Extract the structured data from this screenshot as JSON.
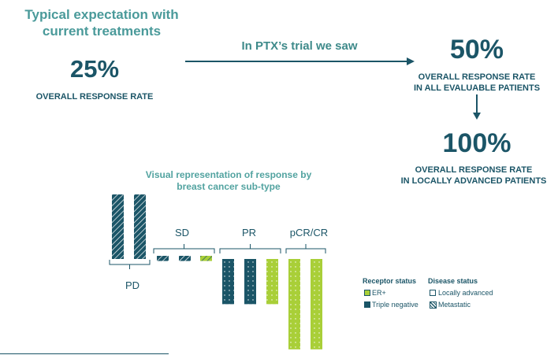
{
  "header": {
    "line1": "Typical expectation with",
    "line2": "current treatments"
  },
  "baseline": {
    "value": "25%",
    "caption": "OVERALL RESPONSE RATE"
  },
  "trial_arrow_label": "In PTX’s trial we saw",
  "trial_all": {
    "value": "50%",
    "caption_line1": "OVERALL RESPONSE RATE",
    "caption_line2": "IN ALL EVALUABLE PATIENTS"
  },
  "trial_local": {
    "value": "100%",
    "caption_line1": "OVERALL RESPONSE RATE",
    "caption_line2": "IN LOCALLY ADVANCED PATIENTS"
  },
  "colors": {
    "triple_negative": "#1b5567",
    "er_plus": "#a9cf38",
    "accent": "#4a9a9a"
  },
  "chart_data": {
    "type": "bar",
    "title_line1": "Visual representation of response by",
    "title_line2": "breast cancer sub-type",
    "groups": [
      {
        "label": "PD",
        "direction": "up",
        "bars": [
          {
            "receptor": "triple_negative",
            "disease": "metastatic",
            "value": 1.0
          },
          {
            "receptor": "triple_negative",
            "disease": "metastatic",
            "value": 1.0
          }
        ]
      },
      {
        "label": "SD",
        "direction": "down",
        "bars": [
          {
            "receptor": "triple_negative",
            "disease": "metastatic",
            "value": 0.08
          },
          {
            "receptor": "triple_negative",
            "disease": "metastatic",
            "value": 0.08
          },
          {
            "receptor": "er_plus",
            "disease": "metastatic",
            "value": 0.08
          }
        ]
      },
      {
        "label": "PR",
        "direction": "down",
        "bars": [
          {
            "receptor": "triple_negative",
            "disease": "locally_advanced",
            "value": 0.7
          },
          {
            "receptor": "triple_negative",
            "disease": "locally_advanced",
            "value": 0.7
          },
          {
            "receptor": "er_plus",
            "disease": "locally_advanced",
            "value": 0.7
          }
        ]
      },
      {
        "label": "pCR/CR",
        "direction": "down",
        "bars": [
          {
            "receptor": "er_plus",
            "disease": "locally_advanced",
            "value": 1.4
          },
          {
            "receptor": "er_plus",
            "disease": "locally_advanced",
            "value": 1.4
          }
        ]
      }
    ]
  },
  "legend": {
    "receptor_title": "Receptor status",
    "er_plus": "ER+",
    "triple_negative": "Triple negative",
    "disease_title": "Disease status",
    "locally_advanced": "Locally advanced",
    "metastatic": "Metastatic"
  }
}
